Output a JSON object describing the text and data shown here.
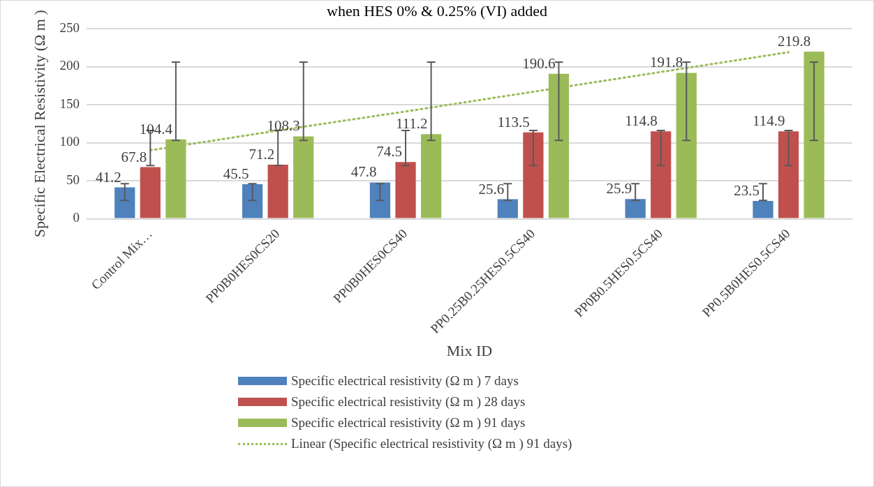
{
  "chart_data": {
    "type": "bar",
    "title": "when HES 0% & 0.25% (VI) added",
    "xlabel": "Mix ID",
    "ylabel": "Specific Electrical Resistivity (Ω m )",
    "categories": [
      "Control Mix…",
      "PP0B0HES0CS20",
      "PP0B0HES0CS40",
      "PP0.25B0.25HES0.5CS40",
      "PP0B0.5HES0.5CS40",
      "PP0.5B0HES0.5CS40"
    ],
    "series": [
      {
        "name": "Specific electrical resistivity (Ω m ) 7 days",
        "color": "#4f81bd",
        "values": [
          41.2,
          45.5,
          47.8,
          25.6,
          25.9,
          23.5
        ],
        "errors": [
          [
            24,
            46
          ],
          [
            24,
            46
          ],
          [
            24,
            46
          ],
          [
            24,
            46
          ],
          [
            24,
            46
          ],
          [
            24,
            46
          ]
        ],
        "value_labels": [
          "41.2",
          "45.5",
          "47.8",
          "25.6",
          "25.9",
          "23.5"
        ]
      },
      {
        "name": "Specific electrical resistivity (Ω m ) 28 days",
        "color": "#c0504d",
        "values": [
          67.8,
          71.2,
          74.5,
          113.5,
          114.8,
          114.9
        ],
        "errors": [
          [
            70,
            116
          ],
          [
            70,
            116
          ],
          [
            70,
            116
          ],
          [
            70,
            116
          ],
          [
            70,
            116
          ],
          [
            70,
            116
          ]
        ],
        "value_labels": [
          "67.8",
          "71.2",
          "74.5",
          "113.5",
          "114.8",
          "114.9"
        ]
      },
      {
        "name": "Specific electrical resistivity (Ω m ) 91 days",
        "color": "#9bbb59",
        "values": [
          104.4,
          108.3,
          111.2,
          190.6,
          191.8,
          219.8
        ],
        "errors": [
          [
            103,
            206
          ],
          [
            103,
            206
          ],
          [
            103,
            206
          ],
          [
            103,
            206
          ],
          [
            103,
            206
          ],
          [
            103,
            206
          ]
        ],
        "value_labels": [
          "104.4",
          "108.3",
          "111.2",
          "190.6",
          "191.8",
          "219.8"
        ]
      },
      {
        "name": "Linear (Specific electrical resistivity (Ω m ) 91 days)",
        "type": "line",
        "color": "#9bbb59",
        "line_style": "dotted",
        "marker": "none",
        "values": [
          90,
          116,
          141,
          167,
          193,
          219
        ]
      }
    ],
    "ylim": [
      0,
      250
    ],
    "yticks": [
      0,
      50,
      100,
      150,
      200,
      250
    ],
    "grid": "y",
    "legend": "bottom"
  }
}
